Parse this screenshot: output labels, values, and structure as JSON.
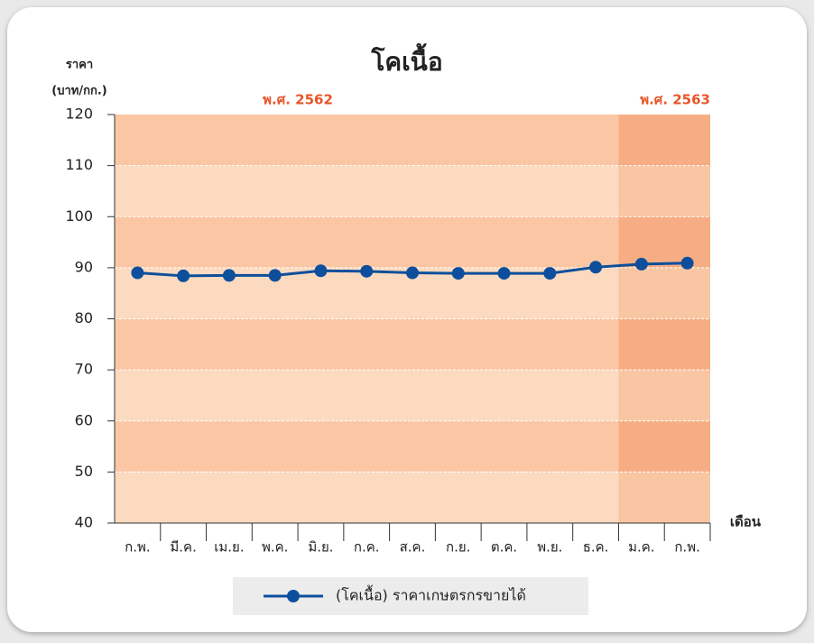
{
  "chart_data": {
    "type": "line",
    "title": "โคเนื้อ",
    "y_label_lines": [
      "ราคา",
      "(บาท/กก.)"
    ],
    "x_label": "เดือน",
    "categories": [
      "ก.พ.",
      "มี.ค.",
      "เม.ย.",
      "พ.ค.",
      "มิ.ย.",
      "ก.ค.",
      "ส.ค.",
      "ก.ย.",
      "ต.ค.",
      "พ.ย.",
      "ธ.ค.",
      "ม.ค.",
      "ก.พ."
    ],
    "periods": [
      {
        "label": "พ.ศ. 2562",
        "start": 0
      },
      {
        "label": "พ.ศ. 2563",
        "start": 11
      }
    ],
    "series": [
      {
        "name": "(โคเนื้อ) ราคาเกษตรกรขายได้",
        "color": "#0d4f9c",
        "values": [
          89.0,
          88.4,
          88.5,
          88.5,
          89.4,
          89.3,
          89.0,
          88.9,
          88.9,
          88.9,
          90.1,
          90.7,
          90.9
        ]
      }
    ],
    "ylim": [
      40,
      120
    ],
    "yticks": [
      40,
      50,
      60,
      70,
      80,
      90,
      100,
      110,
      120
    ],
    "grid": true
  }
}
